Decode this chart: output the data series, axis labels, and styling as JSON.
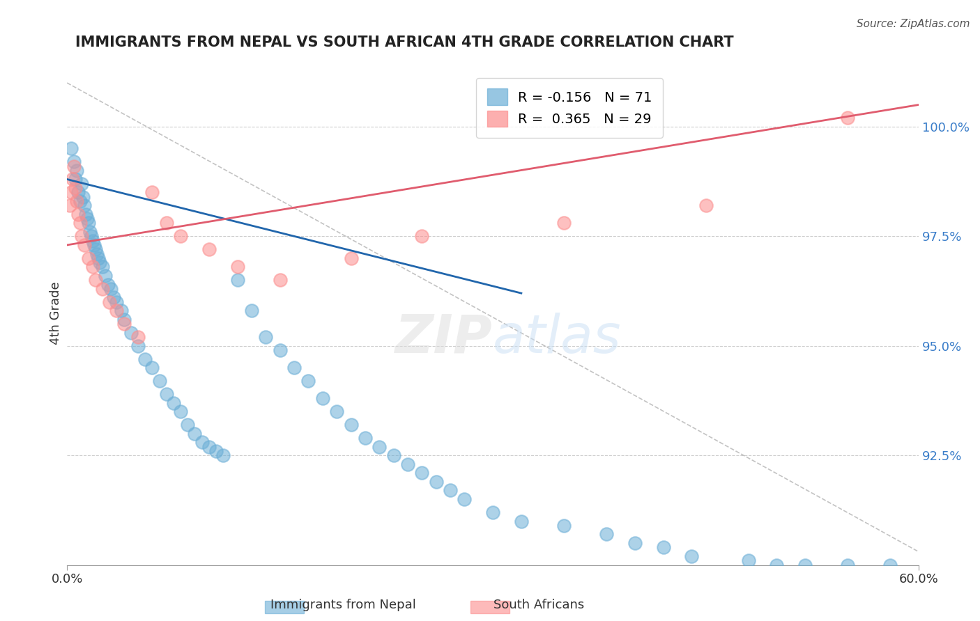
{
  "title": "IMMIGRANTS FROM NEPAL VS SOUTH AFRICAN 4TH GRADE CORRELATION CHART",
  "source": "Source: ZipAtlas.com",
  "xlabel_blue": "Immigrants from Nepal",
  "xlabel_pink": "South Africans",
  "ylabel": "4th Grade",
  "xlim": [
    0.0,
    60.0
  ],
  "ylim": [
    90.0,
    101.5
  ],
  "yticks": [
    92.5,
    95.0,
    97.5,
    100.0
  ],
  "xticks": [
    0.0,
    60.0
  ],
  "xtick_labels": [
    "0.0%",
    "60.0%"
  ],
  "ytick_labels": [
    "92.5%",
    "95.0%",
    "97.5%",
    "100.0%"
  ],
  "legend_blue_r": "R = -0.156",
  "legend_blue_n": "N = 71",
  "legend_pink_r": "R =  0.365",
  "legend_pink_n": "N = 29",
  "blue_color": "#6baed6",
  "pink_color": "#fc8d8d",
  "blue_line_color": "#2166ac",
  "pink_line_color": "#e05c6e",
  "watermark": "ZIPatlas",
  "blue_scatter_x": [
    0.3,
    0.5,
    0.6,
    0.7,
    0.8,
    0.9,
    1.0,
    1.1,
    1.2,
    1.3,
    1.4,
    1.5,
    1.6,
    1.7,
    1.8,
    1.9,
    2.0,
    2.1,
    2.2,
    2.3,
    2.5,
    2.7,
    2.9,
    3.1,
    3.3,
    3.5,
    3.8,
    4.0,
    4.5,
    5.0,
    5.5,
    6.0,
    6.5,
    7.0,
    7.5,
    8.0,
    8.5,
    9.0,
    9.5,
    10.0,
    10.5,
    11.0,
    12.0,
    13.0,
    14.0,
    15.0,
    16.0,
    17.0,
    18.0,
    19.0,
    20.0,
    21.0,
    22.0,
    23.0,
    24.0,
    25.0,
    26.0,
    27.0,
    28.0,
    30.0,
    32.0,
    35.0,
    38.0,
    40.0,
    42.0,
    44.0,
    48.0,
    50.0,
    52.0,
    55.0,
    58.0
  ],
  "blue_scatter_y": [
    99.5,
    99.2,
    98.8,
    99.0,
    98.5,
    98.3,
    98.7,
    98.4,
    98.2,
    98.0,
    97.9,
    97.8,
    97.6,
    97.5,
    97.4,
    97.3,
    97.2,
    97.1,
    97.0,
    96.9,
    96.8,
    96.6,
    96.4,
    96.3,
    96.1,
    96.0,
    95.8,
    95.6,
    95.3,
    95.0,
    94.7,
    94.5,
    94.2,
    93.9,
    93.7,
    93.5,
    93.2,
    93.0,
    92.8,
    92.7,
    92.6,
    92.5,
    96.5,
    95.8,
    95.2,
    94.9,
    94.5,
    94.2,
    93.8,
    93.5,
    93.2,
    92.9,
    92.7,
    92.5,
    92.3,
    92.1,
    91.9,
    91.7,
    91.5,
    91.2,
    91.0,
    90.9,
    90.7,
    90.5,
    90.4,
    90.2,
    90.1,
    90.0,
    90.0,
    90.0,
    90.0
  ],
  "pink_scatter_x": [
    0.2,
    0.3,
    0.4,
    0.5,
    0.6,
    0.7,
    0.8,
    0.9,
    1.0,
    1.2,
    1.5,
    1.8,
    2.0,
    2.5,
    3.0,
    3.5,
    4.0,
    5.0,
    6.0,
    7.0,
    8.0,
    10.0,
    12.0,
    15.0,
    20.0,
    25.0,
    35.0,
    45.0,
    55.0
  ],
  "pink_scatter_y": [
    98.2,
    98.5,
    98.8,
    99.1,
    98.6,
    98.3,
    98.0,
    97.8,
    97.5,
    97.3,
    97.0,
    96.8,
    96.5,
    96.3,
    96.0,
    95.8,
    95.5,
    95.2,
    98.5,
    97.8,
    97.5,
    97.2,
    96.8,
    96.5,
    97.0,
    97.5,
    97.8,
    98.2,
    100.2
  ]
}
